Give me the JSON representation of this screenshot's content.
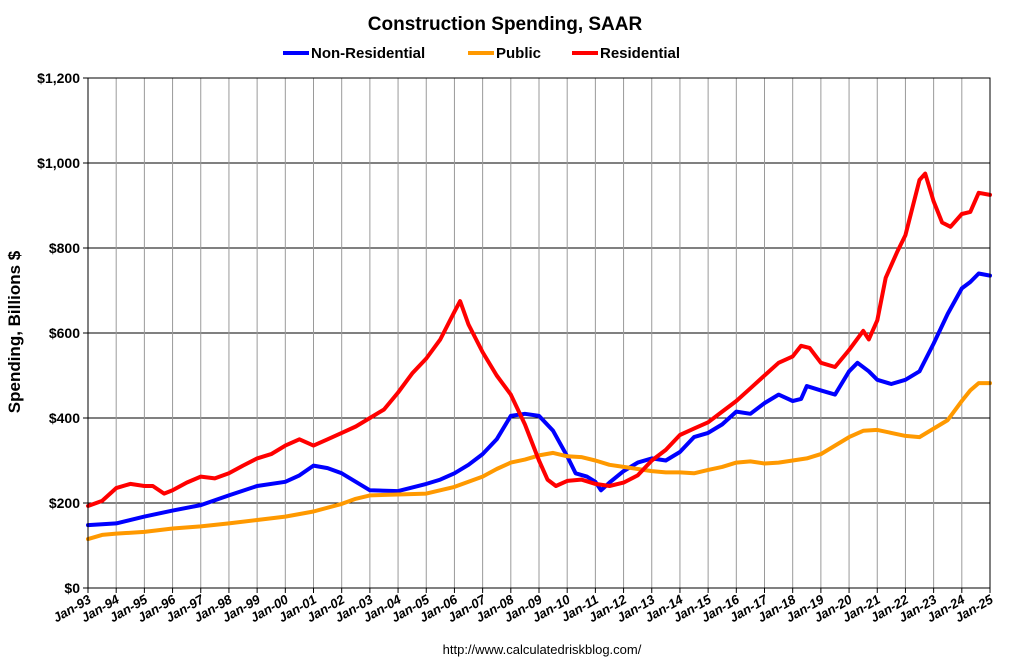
{
  "chart_data": {
    "type": "line",
    "title": "Construction Spending, SAAR",
    "ylabel": "Spending, Billions $",
    "xlabel": "",
    "source": "http://www.calculatedriskblog.com/",
    "ylim": [
      0,
      1200
    ],
    "xlim": [
      1993.0,
      2025.0
    ],
    "grid": true,
    "legend_position": "top-center",
    "yticks": [
      0,
      200,
      400,
      600,
      800,
      1000,
      1200
    ],
    "ytick_labels": [
      "$0",
      "$200",
      "$400",
      "$600",
      "$800",
      "$1,000",
      "$1,200"
    ],
    "xtick_labels": [
      "Jan-93",
      "Jan-94",
      "Jan-95",
      "Jan-96",
      "Jan-97",
      "Jan-98",
      "Jan-99",
      "Jan-00",
      "Jan-01",
      "Jan-02",
      "Jan-03",
      "Jan-04",
      "Jan-05",
      "Jan-06",
      "Jan-07",
      "Jan-08",
      "Jan-09",
      "Jan-10",
      "Jan-11",
      "Jan-12",
      "Jan-13",
      "Jan-14",
      "Jan-15",
      "Jan-16",
      "Jan-17",
      "Jan-18",
      "Jan-19",
      "Jan-20",
      "Jan-21",
      "Jan-22",
      "Jan-23",
      "Jan-24",
      "Jan-25"
    ],
    "series": [
      {
        "name": "Non-Residential",
        "color": "#0000ff",
        "points": [
          [
            1993.0,
            148
          ],
          [
            1994.0,
            152
          ],
          [
            1995.0,
            168
          ],
          [
            1996.0,
            182
          ],
          [
            1997.0,
            195
          ],
          [
            1998.0,
            218
          ],
          [
            1999.0,
            240
          ],
          [
            2000.0,
            250
          ],
          [
            2000.5,
            265
          ],
          [
            2001.0,
            288
          ],
          [
            2001.5,
            282
          ],
          [
            2002.0,
            270
          ],
          [
            2002.5,
            250
          ],
          [
            2003.0,
            230
          ],
          [
            2004.0,
            228
          ],
          [
            2005.0,
            245
          ],
          [
            2005.5,
            255
          ],
          [
            2006.0,
            270
          ],
          [
            2006.5,
            290
          ],
          [
            2007.0,
            315
          ],
          [
            2007.5,
            350
          ],
          [
            2008.0,
            405
          ],
          [
            2008.5,
            410
          ],
          [
            2009.0,
            405
          ],
          [
            2009.5,
            370
          ],
          [
            2010.0,
            310
          ],
          [
            2010.3,
            270
          ],
          [
            2010.7,
            262
          ],
          [
            2011.0,
            250
          ],
          [
            2011.2,
            230
          ],
          [
            2011.5,
            248
          ],
          [
            2012.0,
            275
          ],
          [
            2012.5,
            295
          ],
          [
            2013.0,
            305
          ],
          [
            2013.5,
            300
          ],
          [
            2014.0,
            320
          ],
          [
            2014.5,
            355
          ],
          [
            2015.0,
            365
          ],
          [
            2015.5,
            385
          ],
          [
            2016.0,
            415
          ],
          [
            2016.5,
            410
          ],
          [
            2017.0,
            435
          ],
          [
            2017.5,
            455
          ],
          [
            2018.0,
            440
          ],
          [
            2018.3,
            445
          ],
          [
            2018.5,
            475
          ],
          [
            2019.0,
            465
          ],
          [
            2019.5,
            455
          ],
          [
            2020.0,
            510
          ],
          [
            2020.3,
            530
          ],
          [
            2020.7,
            510
          ],
          [
            2021.0,
            490
          ],
          [
            2021.5,
            480
          ],
          [
            2022.0,
            490
          ],
          [
            2022.5,
            510
          ],
          [
            2023.0,
            575
          ],
          [
            2023.5,
            645
          ],
          [
            2024.0,
            705
          ],
          [
            2024.3,
            720
          ],
          [
            2024.6,
            740
          ],
          [
            2025.0,
            735
          ]
        ]
      },
      {
        "name": "Public",
        "color": "#ff9900",
        "points": [
          [
            1993.0,
            115
          ],
          [
            1993.5,
            125
          ],
          [
            1994.0,
            128
          ],
          [
            1995.0,
            132
          ],
          [
            1996.0,
            140
          ],
          [
            1997.0,
            145
          ],
          [
            1998.0,
            152
          ],
          [
            1999.0,
            160
          ],
          [
            2000.0,
            168
          ],
          [
            2001.0,
            180
          ],
          [
            2002.0,
            198
          ],
          [
            2002.5,
            210
          ],
          [
            2003.0,
            218
          ],
          [
            2004.0,
            220
          ],
          [
            2005.0,
            222
          ],
          [
            2006.0,
            238
          ],
          [
            2007.0,
            262
          ],
          [
            2007.5,
            280
          ],
          [
            2008.0,
            295
          ],
          [
            2008.5,
            302
          ],
          [
            2009.0,
            312
          ],
          [
            2009.5,
            318
          ],
          [
            2010.0,
            310
          ],
          [
            2010.5,
            308
          ],
          [
            2011.0,
            300
          ],
          [
            2011.5,
            290
          ],
          [
            2012.0,
            285
          ],
          [
            2012.5,
            280
          ],
          [
            2013.0,
            275
          ],
          [
            2013.5,
            272
          ],
          [
            2014.0,
            272
          ],
          [
            2014.5,
            270
          ],
          [
            2015.0,
            278
          ],
          [
            2015.5,
            285
          ],
          [
            2016.0,
            295
          ],
          [
            2016.5,
            298
          ],
          [
            2017.0,
            293
          ],
          [
            2017.5,
            295
          ],
          [
            2018.0,
            300
          ],
          [
            2018.5,
            305
          ],
          [
            2019.0,
            315
          ],
          [
            2019.5,
            335
          ],
          [
            2020.0,
            355
          ],
          [
            2020.5,
            370
          ],
          [
            2021.0,
            372
          ],
          [
            2021.5,
            365
          ],
          [
            2022.0,
            358
          ],
          [
            2022.5,
            355
          ],
          [
            2023.0,
            375
          ],
          [
            2023.5,
            395
          ],
          [
            2024.0,
            440
          ],
          [
            2024.3,
            465
          ],
          [
            2024.6,
            482
          ],
          [
            2025.0,
            482
          ]
        ]
      },
      {
        "name": "Residential",
        "color": "#ff0000",
        "points": [
          [
            1993.0,
            193
          ],
          [
            1993.5,
            205
          ],
          [
            1994.0,
            235
          ],
          [
            1994.5,
            245
          ],
          [
            1995.0,
            240
          ],
          [
            1995.3,
            240
          ],
          [
            1995.7,
            222
          ],
          [
            1996.0,
            230
          ],
          [
            1996.5,
            248
          ],
          [
            1997.0,
            262
          ],
          [
            1997.5,
            258
          ],
          [
            1998.0,
            270
          ],
          [
            1998.5,
            288
          ],
          [
            1999.0,
            305
          ],
          [
            1999.5,
            315
          ],
          [
            2000.0,
            335
          ],
          [
            2000.5,
            350
          ],
          [
            2001.0,
            335
          ],
          [
            2001.5,
            350
          ],
          [
            2002.0,
            365
          ],
          [
            2002.5,
            380
          ],
          [
            2003.0,
            400
          ],
          [
            2003.5,
            420
          ],
          [
            2004.0,
            460
          ],
          [
            2004.5,
            505
          ],
          [
            2005.0,
            540
          ],
          [
            2005.5,
            585
          ],
          [
            2006.0,
            650
          ],
          [
            2006.2,
            675
          ],
          [
            2006.5,
            620
          ],
          [
            2007.0,
            555
          ],
          [
            2007.5,
            500
          ],
          [
            2008.0,
            455
          ],
          [
            2008.5,
            385
          ],
          [
            2009.0,
            300
          ],
          [
            2009.3,
            255
          ],
          [
            2009.6,
            240
          ],
          [
            2010.0,
            252
          ],
          [
            2010.5,
            255
          ],
          [
            2011.0,
            245
          ],
          [
            2011.5,
            240
          ],
          [
            2012.0,
            248
          ],
          [
            2012.5,
            265
          ],
          [
            2013.0,
            300
          ],
          [
            2013.5,
            325
          ],
          [
            2014.0,
            360
          ],
          [
            2014.5,
            375
          ],
          [
            2015.0,
            390
          ],
          [
            2015.5,
            415
          ],
          [
            2016.0,
            440
          ],
          [
            2016.5,
            470
          ],
          [
            2017.0,
            500
          ],
          [
            2017.5,
            530
          ],
          [
            2018.0,
            545
          ],
          [
            2018.3,
            570
          ],
          [
            2018.6,
            565
          ],
          [
            2019.0,
            530
          ],
          [
            2019.5,
            520
          ],
          [
            2020.0,
            560
          ],
          [
            2020.5,
            605
          ],
          [
            2020.7,
            585
          ],
          [
            2021.0,
            630
          ],
          [
            2021.3,
            730
          ],
          [
            2021.7,
            790
          ],
          [
            2022.0,
            830
          ],
          [
            2022.5,
            960
          ],
          [
            2022.7,
            975
          ],
          [
            2023.0,
            910
          ],
          [
            2023.3,
            860
          ],
          [
            2023.6,
            850
          ],
          [
            2024.0,
            880
          ],
          [
            2024.3,
            885
          ],
          [
            2024.6,
            930
          ],
          [
            2025.0,
            925
          ]
        ]
      }
    ]
  }
}
